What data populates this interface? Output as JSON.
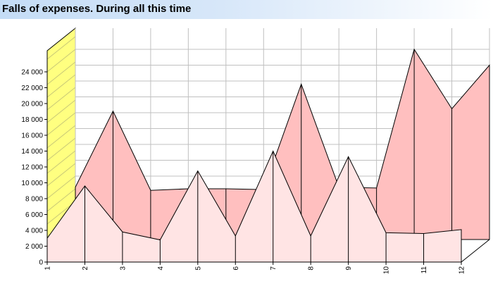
{
  "chart_data": {
    "type": "area",
    "title": "Falls of expenses. During all this time",
    "categories": [
      "1",
      "2",
      "3",
      "4",
      "5",
      "6",
      "7",
      "8",
      "9",
      "10",
      "11",
      "12"
    ],
    "ylim": [
      0,
      24000
    ],
    "y_ticks": [
      "0",
      "2 000",
      "4 000",
      "6 000",
      "8 000",
      "10 000",
      "12 000",
      "14 000",
      "16 000",
      "18 000",
      "20 000",
      "22 000",
      "24 000"
    ],
    "grid": true,
    "three_d": true,
    "series": [
      {
        "values": [
          3000,
          9600,
          3800,
          2800,
          11500,
          3300,
          14000,
          3300,
          13300,
          3700,
          3600,
          4100
        ],
        "color": "#ffe4e4"
      },
      {
        "values": [
          6600,
          16200,
          6200,
          6400,
          6400,
          6300,
          19600,
          6600,
          6500,
          24000,
          16500,
          22000
        ],
        "color": "#ffbfbf"
      }
    ],
    "wall_color": "#ffff80"
  }
}
